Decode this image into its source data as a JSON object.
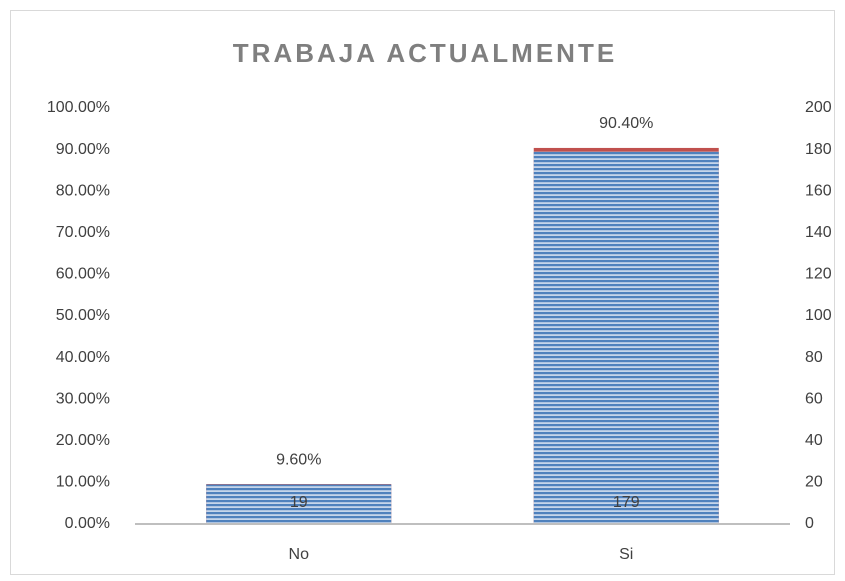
{
  "chart_data": {
    "type": "bar",
    "title": "TRABAJA ACTUALMENTE",
    "categories": [
      "No",
      "Si"
    ],
    "series": [
      {
        "color": "#c0504d",
        "values": [
          9.6,
          90.4
        ],
        "value_labels": [
          "9.60%",
          "90.40%"
        ],
        "axis": "y"
      },
      {
        "color": "#4f81bd",
        "values": [
          19,
          179
        ],
        "axis": "y2"
      }
    ],
    "ylim": [
      0,
      100
    ],
    "yticks": [
      {
        "value": 0,
        "label": "0.00%"
      },
      {
        "value": 10,
        "label": "10.00%"
      },
      {
        "value": 20,
        "label": "20.00%"
      },
      {
        "value": 30,
        "label": "30.00%"
      },
      {
        "value": 40,
        "label": "40.00%"
      },
      {
        "value": 50,
        "label": "50.00%"
      },
      {
        "value": 60,
        "label": "60.00%"
      },
      {
        "value": 70,
        "label": "70.00%"
      },
      {
        "value": 80,
        "label": "80.00%"
      },
      {
        "value": 90,
        "label": "90.00%"
      },
      {
        "value": 100,
        "label": "100.00%"
      }
    ],
    "y2lim": [
      0,
      200
    ],
    "y2ticks": [
      0,
      20,
      40,
      60,
      80,
      100,
      120,
      140,
      160,
      180,
      200
    ],
    "grid": false
  }
}
